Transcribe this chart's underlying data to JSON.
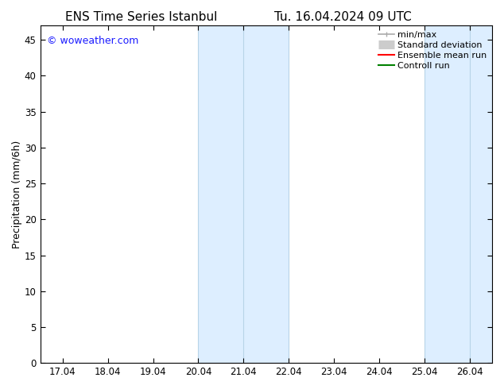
{
  "title_left": "ENS Time Series Istanbul",
  "title_right": "Tu. 16.04.2024 09 UTC",
  "ylabel": "Precipitation (mm/6h)",
  "watermark": "© woweather.com",
  "watermark_color": "#1a1aff",
  "ylim": [
    0,
    47
  ],
  "yticks": [
    0,
    5,
    10,
    15,
    20,
    25,
    30,
    35,
    40,
    45
  ],
  "xtick_labels": [
    "17.04",
    "18.04",
    "19.04",
    "20.04",
    "21.04",
    "22.04",
    "23.04",
    "24.04",
    "25.04",
    "26.04"
  ],
  "xtick_positions": [
    0,
    1,
    2,
    3,
    4,
    5,
    6,
    7,
    8,
    9
  ],
  "xlim": [
    -0.5,
    9.5
  ],
  "shaded_bands": [
    {
      "x_start": 3.0,
      "x_end": 5.0,
      "color": "#ddeeff"
    },
    {
      "x_start": 8.0,
      "x_end": 9.5,
      "color": "#ddeeff"
    }
  ],
  "band_lines_x": [
    3.0,
    4.0,
    5.0,
    8.0,
    9.0
  ],
  "band_line_color": "#b8d4e8",
  "legend_items": [
    {
      "label": "min/max",
      "color": "#aaaaaa",
      "lw": 1.2,
      "style": "minmax"
    },
    {
      "label": "Standard deviation",
      "color": "#cccccc",
      "lw": 8,
      "style": "band"
    },
    {
      "label": "Ensemble mean run",
      "color": "red",
      "lw": 1.5,
      "style": "line"
    },
    {
      "label": "Controll run",
      "color": "green",
      "lw": 1.5,
      "style": "line"
    }
  ],
  "bg_color": "#ffffff",
  "plot_bg_color": "#ffffff",
  "title_fontsize": 11,
  "tick_fontsize": 8.5,
  "ylabel_fontsize": 9,
  "watermark_fontsize": 9,
  "legend_fontsize": 8
}
